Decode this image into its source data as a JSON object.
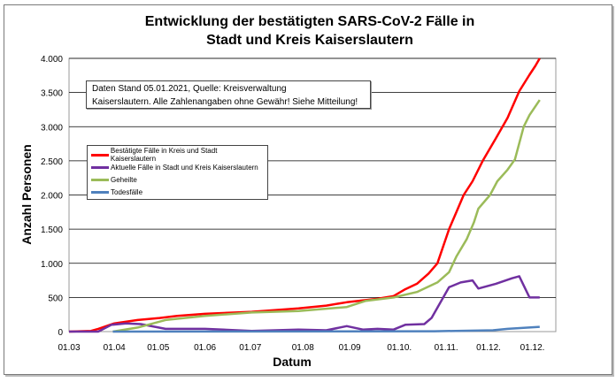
{
  "chart_data": {
    "type": "line",
    "title_line1": "Entwicklung der bestätigten SARS-CoV-2 Fälle in",
    "title_line2": "Stadt und Kreis Kaiserslautern",
    "xlabel": "Datum",
    "ylabel": "Anzahl Personen",
    "x_unit": "days since 01.03.2020",
    "xlim": [
      0,
      333
    ],
    "ylim": [
      0,
      4000
    ],
    "yticks": [
      0,
      500,
      1000,
      1500,
      2000,
      2500,
      3000,
      3500,
      4000
    ],
    "ytick_labels": [
      "0",
      "500",
      "1.000",
      "1.500",
      "2.000",
      "2.500",
      "3.000",
      "3.500",
      "4.000"
    ],
    "xticks": [
      {
        "day": 0,
        "label": "01.03"
      },
      {
        "day": 31,
        "label": "01.04"
      },
      {
        "day": 61,
        "label": "01.05"
      },
      {
        "day": 93,
        "label": "01.06"
      },
      {
        "day": 124,
        "label": "01.07"
      },
      {
        "day": 160,
        "label": "01.08"
      },
      {
        "day": 192,
        "label": "01.09"
      },
      {
        "day": 226,
        "label": "01.10."
      },
      {
        "day": 258,
        "label": "01.11."
      },
      {
        "day": 287,
        "label": "01.12."
      },
      {
        "day": 317,
        "label": "01.12."
      }
    ],
    "grid": true,
    "legend_position": "upper-left",
    "annotation": [
      "Daten Stand 05.01.2021, Quelle: Kreisverwaltung",
      "Kaiserslautern. Alle Zahlenangaben ohne Gewähr! Siehe Mitteilung!"
    ],
    "series": [
      {
        "name": "Bestätigte Fälle in Kreis und Stadt Kaiserslautern",
        "color": "#ff0000",
        "x": [
          0,
          15,
          20,
          31,
          47,
          62,
          74,
          93,
          125,
          157,
          176,
          190,
          211,
          222,
          230,
          238,
          246,
          252,
          260,
          265,
          270,
          276,
          283,
          292,
          300,
          308,
          315,
          319,
          322
        ],
        "y": [
          0,
          10,
          40,
          120,
          170,
          200,
          230,
          260,
          290,
          340,
          380,
          430,
          480,
          520,
          620,
          700,
          850,
          1000,
          1500,
          1750,
          2000,
          2200,
          2500,
          2830,
          3130,
          3520,
          3760,
          3890,
          4000
        ]
      },
      {
        "name": "Aktuelle Fälle in Stadt und Kreis Kaiserslautern",
        "color": "#7030a0",
        "x": [
          0,
          20,
          29,
          39,
          49,
          66,
          93,
          125,
          157,
          176,
          190,
          201,
          211,
          222,
          230,
          243,
          248,
          260,
          268,
          276,
          280,
          292,
          303,
          308,
          315,
          322
        ],
        "y": [
          0,
          0,
          100,
          120,
          110,
          40,
          40,
          10,
          30,
          20,
          80,
          30,
          40,
          30,
          100,
          110,
          200,
          650,
          720,
          750,
          630,
          700,
          780,
          810,
          500,
          500
        ]
      },
      {
        "name": "Geheilte",
        "color": "#9bbb59",
        "x": [
          30,
          47,
          66,
          93,
          125,
          157,
          190,
          203,
          222,
          238,
          252,
          260,
          265,
          272,
          277,
          280,
          288,
          293,
          300,
          305,
          311,
          315,
          322
        ],
        "y": [
          0,
          60,
          170,
          230,
          280,
          300,
          360,
          450,
          500,
          580,
          720,
          870,
          1100,
          1350,
          1600,
          1800,
          2000,
          2200,
          2370,
          2520,
          3000,
          3170,
          3390
        ]
      },
      {
        "name": "Todesfälle",
        "color": "#4f81bd",
        "x": [
          30,
          250,
          290,
          300,
          322
        ],
        "y": [
          0,
          5,
          20,
          40,
          70
        ]
      }
    ]
  }
}
